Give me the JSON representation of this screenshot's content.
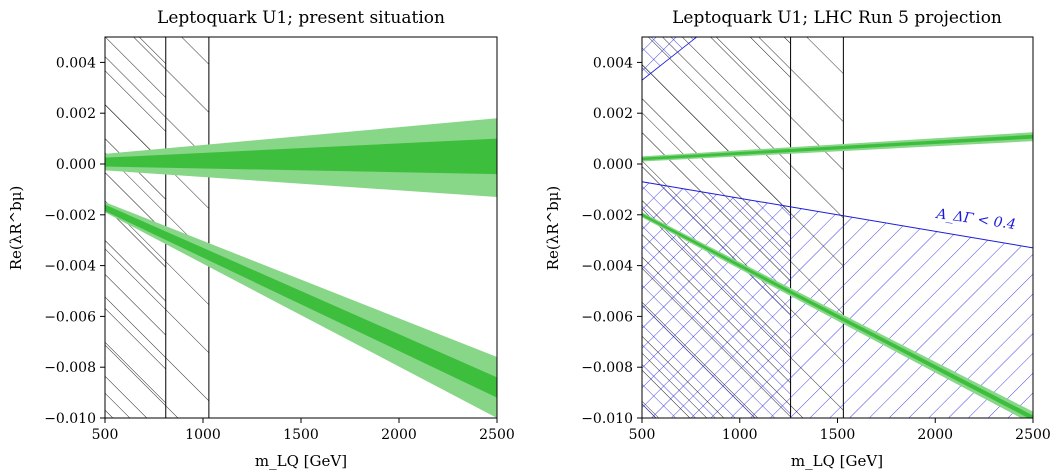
{
  "chart_data": [
    {
      "type": "area",
      "title": "Leptoquark U1; present situation",
      "xlabel": "m_LQ [GeV]",
      "ylabel": "Re(λR^bμ)",
      "xlim": [
        500,
        2500
      ],
      "ylim": [
        -0.01,
        0.005
      ],
      "x_ticks": [
        "500",
        "1000",
        "1500",
        "2000",
        "2500"
      ],
      "y_ticks": [
        "0.004",
        "0.002",
        "0.000",
        "−0.002",
        "−0.004",
        "−0.006",
        "−0.008",
        "−0.010"
      ],
      "colors": {
        "band_1sigma": "#3dbf3d",
        "band_2sigma": "#88d688",
        "hatch_excluded": "#000000"
      },
      "excluded_regions": [
        {
          "x": [
            500,
            810
          ],
          "hatch": "diagonal"
        },
        {
          "x": [
            500,
            1030
          ],
          "hatch": "diagonal"
        }
      ],
      "series": [
        {
          "band": "upper 2σ",
          "x": [
            500,
            2500
          ],
          "low": [
            -0.00025,
            -0.0013
          ],
          "high": [
            0.0004,
            0.0018
          ]
        },
        {
          "band": "upper 1σ",
          "x": [
            500,
            2500
          ],
          "low": [
            -0.0001,
            -0.0004
          ],
          "high": [
            0.00025,
            0.001
          ]
        },
        {
          "band": "lower 2σ",
          "x": [
            500,
            2500
          ],
          "low": [
            -0.0019,
            -0.01
          ],
          "high": [
            -0.0015,
            -0.0076
          ]
        },
        {
          "band": "lower 1σ",
          "x": [
            500,
            2500
          ],
          "low": [
            -0.00185,
            -0.0092
          ],
          "high": [
            -0.0016,
            -0.0084
          ]
        }
      ]
    },
    {
      "type": "area",
      "title": "Leptoquark U1; LHC Run 5 projection",
      "xlabel": "m_LQ [GeV]",
      "ylabel": "Re(λR^bμ)",
      "xlim": [
        500,
        2500
      ],
      "ylim": [
        -0.01,
        0.005
      ],
      "x_ticks": [
        "500",
        "1000",
        "1500",
        "2000",
        "2500"
      ],
      "y_ticks": [
        "0.004",
        "0.002",
        "0.000",
        "−0.002",
        "−0.004",
        "−0.006",
        "−0.008",
        "−0.010"
      ],
      "colors": {
        "band_1sigma": "#3dbf3d",
        "band_2sigma": "#88d688",
        "hatch_excluded": "#000000",
        "hatch_adg": "#1a1adb"
      },
      "annotation": "A_ΔΓ < 0.4",
      "excluded_regions": [
        {
          "x": [
            500,
            1260
          ],
          "hatch": "diagonal"
        },
        {
          "x": [
            500,
            1530
          ],
          "hatch": "diagonal"
        }
      ],
      "adg_boundary": {
        "x": [
          500,
          2500
        ],
        "y": [
          -0.0007,
          -0.0033
        ]
      },
      "adg_top_corner": {
        "x": [
          500,
          780
        ],
        "y_bottom_at_x500": 0.0033
      },
      "series": [
        {
          "band": "upper 2σ",
          "x": [
            500,
            2500
          ],
          "low": [
            0.0001,
            0.0009
          ],
          "high": [
            0.0003,
            0.00125
          ]
        },
        {
          "band": "upper 1σ",
          "x": [
            500,
            2500
          ],
          "low": [
            0.00015,
            0.001
          ],
          "high": [
            0.00025,
            0.00115
          ]
        },
        {
          "band": "lower 2σ",
          "x": [
            500,
            2500
          ],
          "low": [
            -0.0021,
            -0.01025
          ],
          "high": [
            -0.0019,
            -0.00975
          ]
        },
        {
          "band": "lower 1σ",
          "x": [
            500,
            2500
          ],
          "low": [
            -0.00205,
            -0.0101
          ],
          "high": [
            -0.00195,
            -0.0099
          ]
        }
      ]
    }
  ]
}
